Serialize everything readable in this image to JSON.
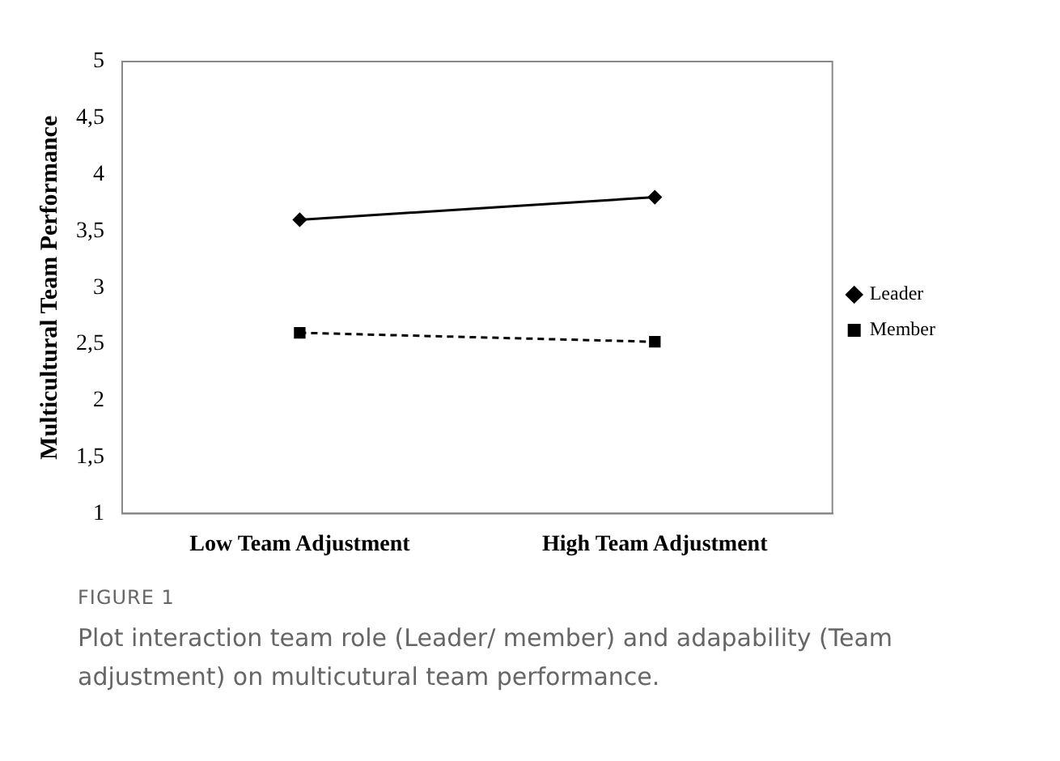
{
  "chart_data": {
    "type": "line",
    "ylabel": "Multicultural Team Performance",
    "categories": [
      "Low Team Adjustment",
      "High Team Adjustment"
    ],
    "series": [
      {
        "name": "Leader",
        "color": "#000000",
        "values": [
          3.6,
          3.8
        ],
        "marker": "diamond",
        "line_style": "solid"
      },
      {
        "name": "Member",
        "color": "#000000",
        "values": [
          2.6,
          2.52
        ],
        "marker": "square",
        "line_style": "dashed"
      }
    ],
    "ylim": [
      1,
      5
    ],
    "yticks": [
      1,
      {
        "value": 1.5,
        "label": "1,5"
      },
      2,
      {
        "value": 2.5,
        "label": "2,5"
      },
      3,
      {
        "value": 3.5,
        "label": "3,5"
      },
      4,
      {
        "value": 4.5,
        "label": "4,5"
      },
      5
    ],
    "grid": false,
    "legend": "right",
    "annotations": [
      "FIGURE 1",
      "Plot interaction team role (Leader/ member) and adapability (Team adjustment) on multicutural team performance."
    ]
  }
}
